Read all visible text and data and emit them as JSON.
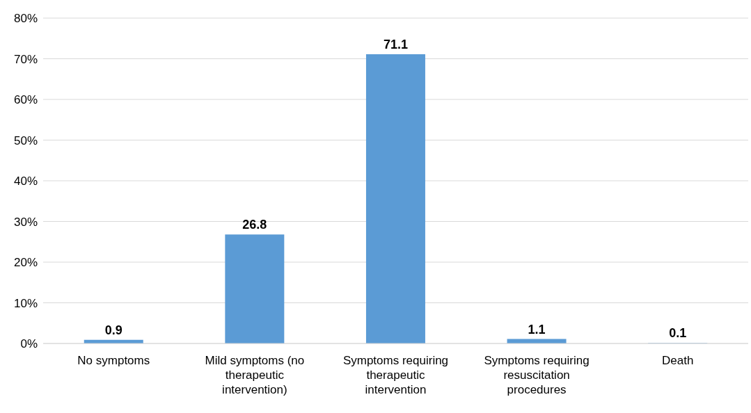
{
  "chart_data": {
    "type": "bar",
    "categories": [
      "No symptoms",
      "Mild symptoms (no therapeutic intervention)",
      "Symptoms requiring therapeutic intervention",
      "Symptoms requiring resuscitation procedures",
      "Death"
    ],
    "values": [
      0.9,
      26.8,
      71.1,
      1.1,
      0.1
    ],
    "color": "#5b9bd5",
    "ylim": [
      0,
      80
    ],
    "yticks": [
      {
        "value": 0,
        "label": "0%"
      },
      {
        "value": 10,
        "label": "10%"
      },
      {
        "value": 20,
        "label": "20%"
      },
      {
        "value": 30,
        "label": "30%"
      },
      {
        "value": 40,
        "label": "40%"
      },
      {
        "value": 50,
        "label": "50%"
      },
      {
        "value": 60,
        "label": "60%"
      },
      {
        "value": 70,
        "label": "70%"
      },
      {
        "value": 80,
        "label": "80%"
      }
    ],
    "grid": "y",
    "data_labels": true
  }
}
